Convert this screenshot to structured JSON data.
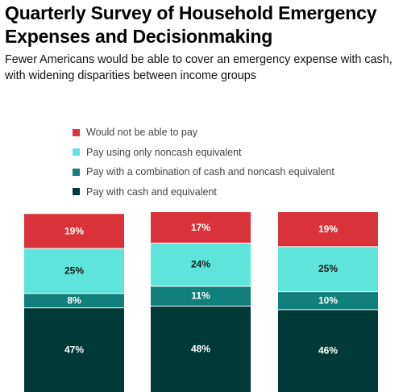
{
  "title": "Quarterly Survey of Household Emergency Expenses and Decisionmaking",
  "subtitle": "Fewer Americans would be able to cover an emergency expense with cash, with widening disparities between income groups",
  "legend": [
    {
      "label": "Would not be able to pay",
      "color": "#d9323a"
    },
    {
      "label": "Pay using only noncash equivalent",
      "color": "#5ee4da"
    },
    {
      "label": "Pay with a combination of cash and noncash equivalent",
      "color": "#117f7b"
    },
    {
      "label": "Pay with cash and equivalent",
      "color": "#003a37"
    }
  ],
  "chart_data": {
    "type": "bar",
    "stacked": true,
    "categories": [
      "",
      "",
      ""
    ],
    "series": [
      {
        "name": "Pay with cash and equivalent",
        "values": [
          47,
          48,
          46
        ],
        "labels": [
          "47%",
          "48%",
          "46%"
        ],
        "color": "#003a37",
        "text_color": "#ffffff"
      },
      {
        "name": "Pay with a combination of cash and noncash equivalent",
        "values": [
          8,
          11,
          10
        ],
        "labels": [
          "8%",
          "11%",
          "10%"
        ],
        "color": "#117f7b",
        "text_color": "#ffffff"
      },
      {
        "name": "Pay using only noncash equivalent",
        "values": [
          25,
          24,
          25
        ],
        "labels": [
          "25%",
          "24%",
          "25%"
        ],
        "color": "#5ee4da",
        "text_color": "#1a1a1a"
      },
      {
        "name": "Would not be able to pay",
        "values": [
          19,
          17,
          19
        ],
        "labels": [
          "19%",
          "17%",
          "19%"
        ],
        "color": "#d9323a",
        "text_color": "#ffffff"
      }
    ],
    "ylim": [
      0,
      100
    ],
    "grid": false,
    "legend_position": "top"
  }
}
